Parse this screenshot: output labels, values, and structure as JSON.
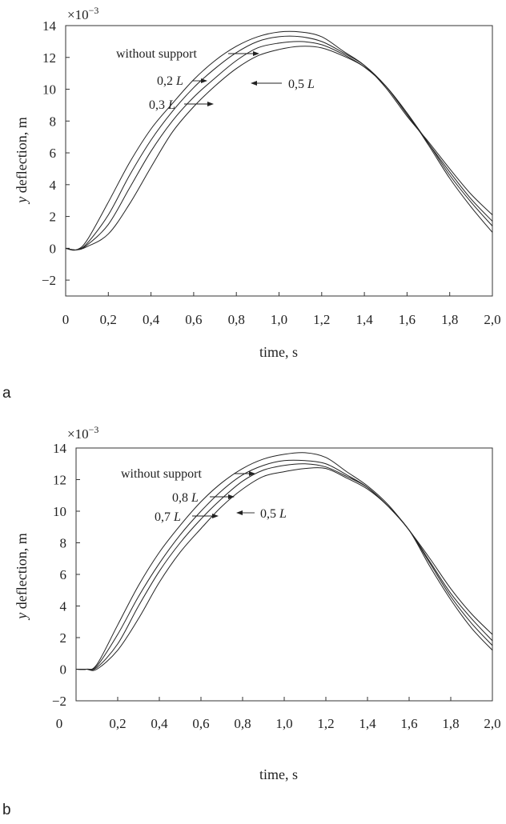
{
  "chart_data": [
    {
      "panel": "a",
      "type": "line",
      "xlabel": "time, s",
      "ylabel": "y deflection, m",
      "y_multiplier": "×10",
      "y_multiplier_exp": "−3",
      "xlim": [
        0,
        2.0
      ],
      "ylim": [
        -3,
        14
      ],
      "x_ticks": [
        0,
        0.2,
        0.4,
        0.6,
        0.8,
        1.0,
        1.2,
        1.4,
        1.6,
        1.8,
        2.0
      ],
      "x_tick_labels": [
        "0",
        "0,2",
        "0,4",
        "0,6",
        "0,8",
        "1,0",
        "1,2",
        "1,4",
        "1,6",
        "1,8",
        "2,0"
      ],
      "y_ticks": [
        -2,
        0,
        2,
        4,
        6,
        8,
        10,
        12,
        14
      ],
      "y_tick_labels": [
        "−2",
        "0",
        "2",
        "4",
        "6",
        "8",
        "10",
        "12",
        "14"
      ],
      "x": [
        0,
        0.05,
        0.1,
        0.2,
        0.3,
        0.4,
        0.5,
        0.6,
        0.7,
        0.8,
        0.9,
        1.0,
        1.1,
        1.2,
        1.3,
        1.4,
        1.5,
        1.6,
        1.7,
        1.8,
        1.9,
        2.0
      ],
      "series": [
        {
          "name": "without support",
          "values": [
            0.0,
            -0.1,
            0.5,
            2.9,
            5.4,
            7.5,
            9.1,
            10.6,
            11.8,
            12.7,
            13.3,
            13.6,
            13.6,
            13.3,
            12.4,
            11.5,
            10.1,
            8.3,
            6.7,
            5.0,
            3.4,
            2.1
          ]
        },
        {
          "name": "0,2 L",
          "values": [
            0.0,
            -0.1,
            0.3,
            2.1,
            4.6,
            6.8,
            8.6,
            10.1,
            11.3,
            12.3,
            13.0,
            13.3,
            13.3,
            13.0,
            12.3,
            11.5,
            10.2,
            8.4,
            6.6,
            4.8,
            3.1,
            1.7
          ]
        },
        {
          "name": "0,3 L",
          "values": [
            0.0,
            -0.1,
            0.2,
            1.5,
            3.8,
            6.1,
            8.0,
            9.5,
            10.7,
            11.8,
            12.6,
            12.9,
            13.0,
            12.8,
            12.2,
            11.4,
            10.2,
            8.5,
            6.6,
            4.6,
            2.9,
            1.4
          ]
        },
        {
          "name": "0,5 L",
          "values": [
            0.0,
            -0.1,
            0.1,
            0.9,
            2.8,
            5.1,
            7.3,
            8.9,
            10.2,
            11.3,
            12.1,
            12.5,
            12.7,
            12.6,
            12.1,
            11.4,
            10.2,
            8.5,
            6.5,
            4.4,
            2.6,
            1.0
          ]
        }
      ],
      "annotations": [
        "without support",
        "0,2 L",
        "0,3 L",
        "0,5 L"
      ],
      "grid": false,
      "legend": "none"
    },
    {
      "panel": "b",
      "type": "line",
      "xlabel": "time, s",
      "ylabel": "y deflection, m",
      "y_multiplier": "×10",
      "y_multiplier_exp": "−3",
      "xlim": [
        0,
        2.0
      ],
      "ylim": [
        -2,
        14
      ],
      "x_ticks": [
        0,
        0.2,
        0.4,
        0.6,
        0.8,
        1.0,
        1.2,
        1.4,
        1.6,
        1.8,
        2.0
      ],
      "x_tick_labels": [
        "0",
        "0,2",
        "0,4",
        "0,6",
        "0,8",
        "1,0",
        "1,2",
        "1,4",
        "1,6",
        "1,8",
        "2,0"
      ],
      "y_ticks": [
        -2,
        0,
        2,
        4,
        6,
        8,
        10,
        12,
        14
      ],
      "y_tick_labels": [
        "−2",
        "0",
        "2",
        "4",
        "6",
        "8",
        "10",
        "12",
        "14"
      ],
      "x": [
        0,
        0.05,
        0.1,
        0.2,
        0.3,
        0.4,
        0.5,
        0.6,
        0.7,
        0.8,
        0.9,
        1.0,
        1.1,
        1.2,
        1.3,
        1.4,
        1.5,
        1.6,
        1.7,
        1.8,
        1.9,
        2.0
      ],
      "series": [
        {
          "name": "without support",
          "values": [
            0.0,
            0.0,
            0.3,
            2.8,
            5.3,
            7.4,
            9.1,
            10.6,
            11.8,
            12.7,
            13.3,
            13.6,
            13.7,
            13.4,
            12.5,
            11.6,
            10.4,
            8.8,
            7.0,
            5.1,
            3.5,
            2.2
          ]
        },
        {
          "name": "0,8 L",
          "values": [
            0.0,
            0.0,
            0.2,
            2.2,
            4.6,
            6.7,
            8.5,
            10.0,
            11.3,
            12.3,
            12.9,
            13.2,
            13.2,
            13.0,
            12.3,
            11.5,
            10.3,
            8.8,
            6.8,
            4.8,
            3.2,
            1.8
          ]
        },
        {
          "name": "0,7 L",
          "values": [
            0.0,
            0.0,
            0.1,
            1.6,
            4.0,
            6.2,
            8.0,
            9.5,
            10.8,
            11.9,
            12.6,
            12.9,
            13.0,
            12.8,
            12.2,
            11.5,
            10.3,
            8.8,
            6.7,
            4.6,
            2.9,
            1.5
          ]
        },
        {
          "name": "0,5 L",
          "values": [
            0.0,
            0.0,
            0.0,
            1.2,
            3.2,
            5.5,
            7.4,
            8.9,
            10.3,
            11.4,
            12.2,
            12.5,
            12.7,
            12.7,
            12.1,
            11.4,
            10.3,
            8.8,
            6.5,
            4.4,
            2.6,
            1.2
          ]
        }
      ],
      "annotations": [
        "without support",
        "0,8 L",
        "0,7 L",
        "0,5 L"
      ],
      "grid": false,
      "legend": "none"
    }
  ],
  "panel_labels": [
    "a",
    "b"
  ]
}
